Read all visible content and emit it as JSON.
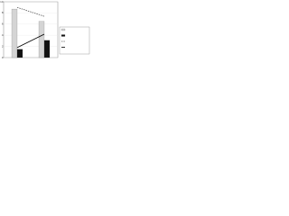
{
  "chart_data": {
    "type": "bar",
    "categories": [
      null,
      null
    ],
    "series": [
      {
        "type": "bar",
        "color": "#d4d4d4",
        "values": [
          8.7,
          6.5
        ]
      },
      {
        "type": "bar",
        "color": "#111111",
        "values": [
          1.5,
          3.1
        ]
      },
      {
        "type": "line",
        "color": "#555555",
        "dash": true,
        "values": [
          9.0,
          7.4
        ]
      },
      {
        "type": "line",
        "color": "#000000",
        "dash": false,
        "values": [
          1.8,
          4.2
        ]
      }
    ],
    "ylim": [
      0,
      10
    ],
    "yticks": [
      0,
      2,
      4,
      6,
      8,
      10
    ],
    "grid": true,
    "legend": "right"
  }
}
